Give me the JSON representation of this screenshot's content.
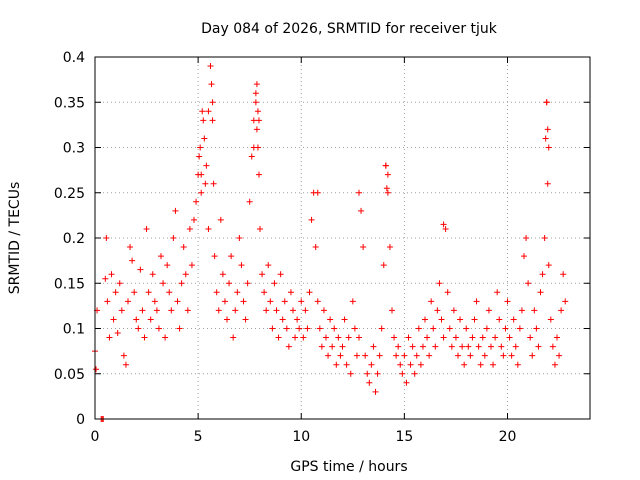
{
  "chart_data": {
    "type": "scatter",
    "title": "Day 084 of 2026, SRMTID for receiver tjuk",
    "xlabel": "GPS time / hours",
    "ylabel": "SRMTID / TECUs",
    "xlim": [
      0,
      24
    ],
    "ylim": [
      0,
      0.4
    ],
    "xticks": [
      0,
      5,
      10,
      15,
      20
    ],
    "xtick_labels": [
      "0",
      "5",
      "10",
      "15",
      "20"
    ],
    "yticks": [
      0,
      0.05,
      0.1,
      0.15,
      0.2,
      0.25,
      0.3,
      0.35,
      0.4
    ],
    "ytick_labels": [
      "0",
      "0.05",
      "0.1",
      "0.15",
      "0.2",
      "0.25",
      "0.3",
      "0.35",
      "0.4"
    ],
    "grid": true,
    "marker": "+",
    "color": "#ff0000",
    "series": [
      {
        "name": "SRMTID",
        "x": [
          0.0,
          0.05,
          0.1,
          0.3,
          0.35,
          0.4,
          0.5,
          0.55,
          0.6,
          0.7,
          0.8,
          0.9,
          1.0,
          1.1,
          1.2,
          1.3,
          1.4,
          1.5,
          1.6,
          1.7,
          1.8,
          1.9,
          2.0,
          2.1,
          2.2,
          2.3,
          2.4,
          2.5,
          2.6,
          2.7,
          2.8,
          2.9,
          3.0,
          3.1,
          3.2,
          3.3,
          3.4,
          3.5,
          3.6,
          3.7,
          3.8,
          3.9,
          4.0,
          4.1,
          4.2,
          4.3,
          4.4,
          4.5,
          4.6,
          4.7,
          4.8,
          4.9,
          5.0,
          5.05,
          5.1,
          5.15,
          5.2,
          5.3,
          5.4,
          5.5,
          5.6,
          5.65,
          5.7,
          5.75,
          5.8,
          5.9,
          6.0,
          6.1,
          6.2,
          6.3,
          6.4,
          6.5,
          6.6,
          6.7,
          6.8,
          6.9,
          7.0,
          7.1,
          7.2,
          7.3,
          7.4,
          7.5,
          7.6,
          7.7,
          7.8,
          7.85,
          7.9,
          7.95,
          8.0,
          8.1,
          8.2,
          8.3,
          8.4,
          8.5,
          8.6,
          8.7,
          8.8,
          8.9,
          9.0,
          9.1,
          9.2,
          9.3,
          9.4,
          9.5,
          9.6,
          9.7,
          9.8,
          9.9,
          10.0,
          10.1,
          10.2,
          10.3,
          10.4,
          10.5,
          10.6,
          10.7,
          10.8,
          10.9,
          11.0,
          11.1,
          11.2,
          11.3,
          11.4,
          11.5,
          11.6,
          11.7,
          11.8,
          11.9,
          12.0,
          12.1,
          12.2,
          12.3,
          12.4,
          12.5,
          12.6,
          12.7,
          12.8,
          12.9,
          13.0,
          13.1,
          13.2,
          13.3,
          13.4,
          13.5,
          13.6,
          13.7,
          13.8,
          13.9,
          14.0,
          14.1,
          14.2,
          14.3,
          14.4,
          14.5,
          14.6,
          14.7,
          14.8,
          14.9,
          15.0,
          15.1,
          15.2,
          15.3,
          15.4,
          15.5,
          15.6,
          15.7,
          15.8,
          15.9,
          16.0,
          16.1,
          16.2,
          16.3,
          16.4,
          16.5,
          16.6,
          16.7,
          16.8,
          16.9,
          17.0,
          17.1,
          17.2,
          17.3,
          17.4,
          17.5,
          17.6,
          17.7,
          17.8,
          17.9,
          18.0,
          18.1,
          18.2,
          18.3,
          18.4,
          18.5,
          18.6,
          18.7,
          18.8,
          18.9,
          19.0,
          19.1,
          19.2,
          19.3,
          19.4,
          19.5,
          19.6,
          19.7,
          19.8,
          19.9,
          20.0,
          20.1,
          20.2,
          20.3,
          20.4,
          20.5,
          20.6,
          20.7,
          20.8,
          20.9,
          21.0,
          21.1,
          21.2,
          21.3,
          21.4,
          21.5,
          21.6,
          21.7,
          21.8,
          21.85,
          21.9,
          21.95,
          22.0,
          22.1,
          22.2,
          22.3,
          22.4,
          22.5,
          22.6,
          22.7,
          22.8,
          5.6,
          5.7,
          5.5,
          7.8,
          7.9,
          7.7,
          10.8,
          12.8,
          14.1,
          14.2,
          16.9,
          21.9,
          22.0,
          21.95,
          5.15,
          5.25,
          5.35,
          7.85,
          7.95,
          14.15
        ],
        "y": [
          0.075,
          0.055,
          0.12,
          0.0,
          0.0,
          0.0,
          0.155,
          0.2,
          0.13,
          0.09,
          0.16,
          0.11,
          0.14,
          0.095,
          0.15,
          0.12,
          0.07,
          0.06,
          0.13,
          0.19,
          0.175,
          0.14,
          0.11,
          0.1,
          0.165,
          0.12,
          0.09,
          0.21,
          0.14,
          0.11,
          0.16,
          0.13,
          0.12,
          0.1,
          0.18,
          0.15,
          0.09,
          0.17,
          0.14,
          0.12,
          0.2,
          0.23,
          0.13,
          0.1,
          0.15,
          0.19,
          0.16,
          0.12,
          0.21,
          0.17,
          0.22,
          0.24,
          0.27,
          0.29,
          0.3,
          0.25,
          0.34,
          0.31,
          0.28,
          0.21,
          0.39,
          0.37,
          0.33,
          0.26,
          0.18,
          0.14,
          0.12,
          0.22,
          0.16,
          0.13,
          0.11,
          0.15,
          0.18,
          0.09,
          0.12,
          0.14,
          0.2,
          0.17,
          0.13,
          0.11,
          0.15,
          0.24,
          0.29,
          0.33,
          0.35,
          0.37,
          0.3,
          0.27,
          0.21,
          0.16,
          0.14,
          0.12,
          0.17,
          0.13,
          0.1,
          0.15,
          0.12,
          0.09,
          0.16,
          0.11,
          0.13,
          0.1,
          0.08,
          0.14,
          0.12,
          0.09,
          0.11,
          0.1,
          0.13,
          0.09,
          0.12,
          0.1,
          0.14,
          0.22,
          0.25,
          0.19,
          0.13,
          0.1,
          0.08,
          0.12,
          0.09,
          0.07,
          0.11,
          0.08,
          0.1,
          0.06,
          0.09,
          0.07,
          0.08,
          0.11,
          0.06,
          0.09,
          0.05,
          0.13,
          0.1,
          0.07,
          0.09,
          0.23,
          0.19,
          0.07,
          0.05,
          0.04,
          0.06,
          0.08,
          0.03,
          0.05,
          0.07,
          0.1,
          0.17,
          0.28,
          0.25,
          0.19,
          0.12,
          0.09,
          0.07,
          0.08,
          0.06,
          0.05,
          0.07,
          0.04,
          0.09,
          0.06,
          0.08,
          0.05,
          0.07,
          0.1,
          0.06,
          0.08,
          0.11,
          0.09,
          0.07,
          0.13,
          0.1,
          0.08,
          0.12,
          0.15,
          0.11,
          0.09,
          0.21,
          0.14,
          0.1,
          0.08,
          0.12,
          0.09,
          0.07,
          0.11,
          0.08,
          0.06,
          0.1,
          0.08,
          0.07,
          0.09,
          0.11,
          0.13,
          0.08,
          0.06,
          0.09,
          0.07,
          0.1,
          0.12,
          0.08,
          0.06,
          0.09,
          0.14,
          0.11,
          0.08,
          0.07,
          0.1,
          0.13,
          0.09,
          0.07,
          0.11,
          0.08,
          0.06,
          0.1,
          0.12,
          0.18,
          0.2,
          0.15,
          0.09,
          0.07,
          0.12,
          0.1,
          0.08,
          0.14,
          0.16,
          0.2,
          0.31,
          0.35,
          0.26,
          0.17,
          0.11,
          0.08,
          0.06,
          0.09,
          0.07,
          0.12,
          0.16,
          0.13,
          0.39,
          0.35,
          0.34,
          0.36,
          0.34,
          0.3,
          0.25,
          0.25,
          0.28,
          0.27,
          0.215,
          0.35,
          0.3,
          0.32,
          0.27,
          0.33,
          0.26,
          0.32,
          0.33,
          0.255
        ]
      }
    ]
  }
}
